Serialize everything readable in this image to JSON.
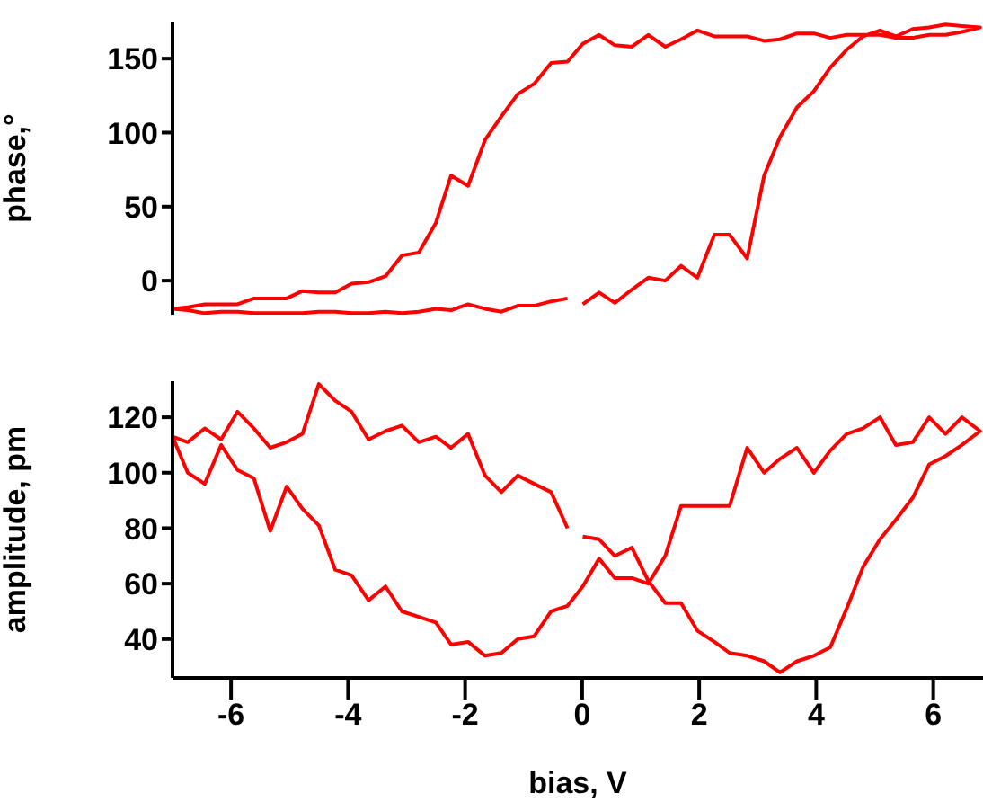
{
  "chart_data": [
    {
      "type": "line",
      "ylabel": "phase,°",
      "xlim": [
        -7,
        6.85
      ],
      "ylim": [
        -23,
        175
      ],
      "yticks": [
        0,
        50,
        100,
        150
      ],
      "tick_labels": "y",
      "marker": "none",
      "series": [
        {
          "color": "#ff0000",
          "x": [
            0.01,
            0.29,
            0.56,
            0.85,
            1.13,
            1.42,
            1.69,
            1.97,
            2.26,
            2.52,
            2.82,
            3.11,
            3.38,
            3.67,
            3.96,
            4.24,
            4.52,
            4.8,
            5.09,
            5.36,
            5.65,
            5.93,
            6.21,
            6.49,
            6.8,
            6.49,
            6.21,
            5.93,
            5.65,
            5.36,
            5.09,
            4.8,
            4.52,
            4.24,
            3.96,
            3.67,
            3.38,
            3.11,
            2.82,
            2.52,
            2.26,
            1.97,
            1.69,
            1.42,
            1.13,
            0.85,
            0.56,
            0.29,
            0.01,
            -0.25,
            -0.53,
            -0.82,
            -1.1,
            -1.38,
            -1.66,
            -1.95,
            -2.24,
            -2.5,
            -2.79,
            -3.08,
            -3.36,
            -3.65,
            -3.94,
            -4.22,
            -4.5,
            -4.78,
            -5.05,
            -5.33,
            -5.61,
            -5.89,
            -6.17,
            -6.45,
            -6.74,
            -7,
            -6.74,
            -6.45,
            -6.17,
            -5.89,
            -5.61,
            -5.33,
            -5.05,
            -4.78,
            -4.5,
            -4.22,
            -3.94,
            -3.65,
            -3.36,
            -3.08,
            -2.79,
            -2.5,
            -2.24,
            -1.95,
            -1.66,
            -1.38,
            -1.1,
            -0.82,
            -0.53,
            -0.25
          ],
          "values": [
            -16,
            -8,
            -15,
            -6,
            2,
            0,
            10,
            2,
            31,
            31,
            15,
            71,
            97,
            117,
            128,
            144,
            156,
            165,
            169,
            165,
            170,
            171,
            173,
            172,
            171,
            168,
            166,
            166,
            164,
            164,
            166,
            166,
            166,
            164,
            167,
            167,
            163,
            162,
            165,
            165,
            165,
            169,
            163,
            158,
            166,
            158,
            159,
            166,
            160,
            148,
            147,
            133,
            126,
            111,
            95,
            64,
            71,
            39,
            19,
            17,
            3,
            -1,
            -2,
            -8,
            -8,
            -7,
            -12,
            -12,
            -12,
            -16,
            -16,
            -16,
            -18,
            -19,
            -20,
            -22,
            -21,
            -21,
            -22,
            -22,
            -22,
            -22,
            -21,
            -21,
            -22,
            -22,
            -21,
            -22,
            -21,
            -19,
            -20,
            -16,
            -19,
            -21,
            -17,
            -17,
            -14,
            -12
          ]
        }
      ]
    },
    {
      "type": "line",
      "xlabel": "bias, V",
      "ylabel": "amplitude, pm",
      "xlim": [
        -7,
        6.85
      ],
      "xticks": [
        -6,
        -4,
        -2,
        0,
        2,
        4,
        6
      ],
      "ylim": [
        26,
        133
      ],
      "yticks": [
        40,
        60,
        80,
        100,
        120
      ],
      "marker": "none",
      "series": [
        {
          "color": "#ff0000",
          "x": [
            0.01,
            0.29,
            0.56,
            0.85,
            1.13,
            1.42,
            1.69,
            1.97,
            2.26,
            2.52,
            2.82,
            3.11,
            3.38,
            3.67,
            3.96,
            4.24,
            4.52,
            4.8,
            5.09,
            5.36,
            5.65,
            5.93,
            6.21,
            6.49,
            6.8,
            6.49,
            6.21,
            5.93,
            5.65,
            5.36,
            5.09,
            4.8,
            4.52,
            4.24,
            3.96,
            3.67,
            3.38,
            3.11,
            2.82,
            2.52,
            2.26,
            1.97,
            1.69,
            1.42,
            1.13,
            0.85,
            0.56,
            0.29,
            0.01,
            -0.25,
            -0.53,
            -0.82,
            -1.1,
            -1.38,
            -1.66,
            -1.95,
            -2.24,
            -2.5,
            -2.79,
            -3.08,
            -3.36,
            -3.65,
            -3.94,
            -4.22,
            -4.5,
            -4.78,
            -5.05,
            -5.33,
            -5.61,
            -5.89,
            -6.17,
            -6.45,
            -6.74,
            -7,
            -6.74,
            -6.45,
            -6.17,
            -5.89,
            -5.61,
            -5.33,
            -5.05,
            -4.78,
            -4.5,
            -4.22,
            -3.94,
            -3.65,
            -3.36,
            -3.08,
            -2.79,
            -2.5,
            -2.24,
            -1.95,
            -1.66,
            -1.38,
            -1.1,
            -0.82,
            -0.53,
            -0.25
          ],
          "values": [
            77,
            76,
            70,
            73,
            61,
            53,
            53,
            43,
            39,
            35,
            34,
            32,
            28,
            32,
            34,
            37,
            51,
            66,
            76,
            83,
            91,
            103,
            106,
            110,
            115,
            120,
            114,
            120,
            111,
            110,
            120,
            116,
            114,
            108,
            100,
            109,
            105,
            100,
            109,
            88,
            88,
            88,
            88,
            70,
            60,
            62,
            62,
            69,
            59,
            52,
            50,
            41,
            40,
            35,
            34,
            39,
            38,
            46,
            48,
            50,
            59,
            54,
            63,
            65,
            81,
            87,
            95,
            79,
            98,
            101,
            110,
            96,
            100,
            113,
            111,
            116,
            112,
            122,
            116,
            109,
            111,
            114,
            132,
            126,
            122,
            112,
            115,
            117,
            111,
            113,
            109,
            114,
            99,
            93,
            99,
            96,
            93,
            80
          ]
        }
      ]
    }
  ]
}
